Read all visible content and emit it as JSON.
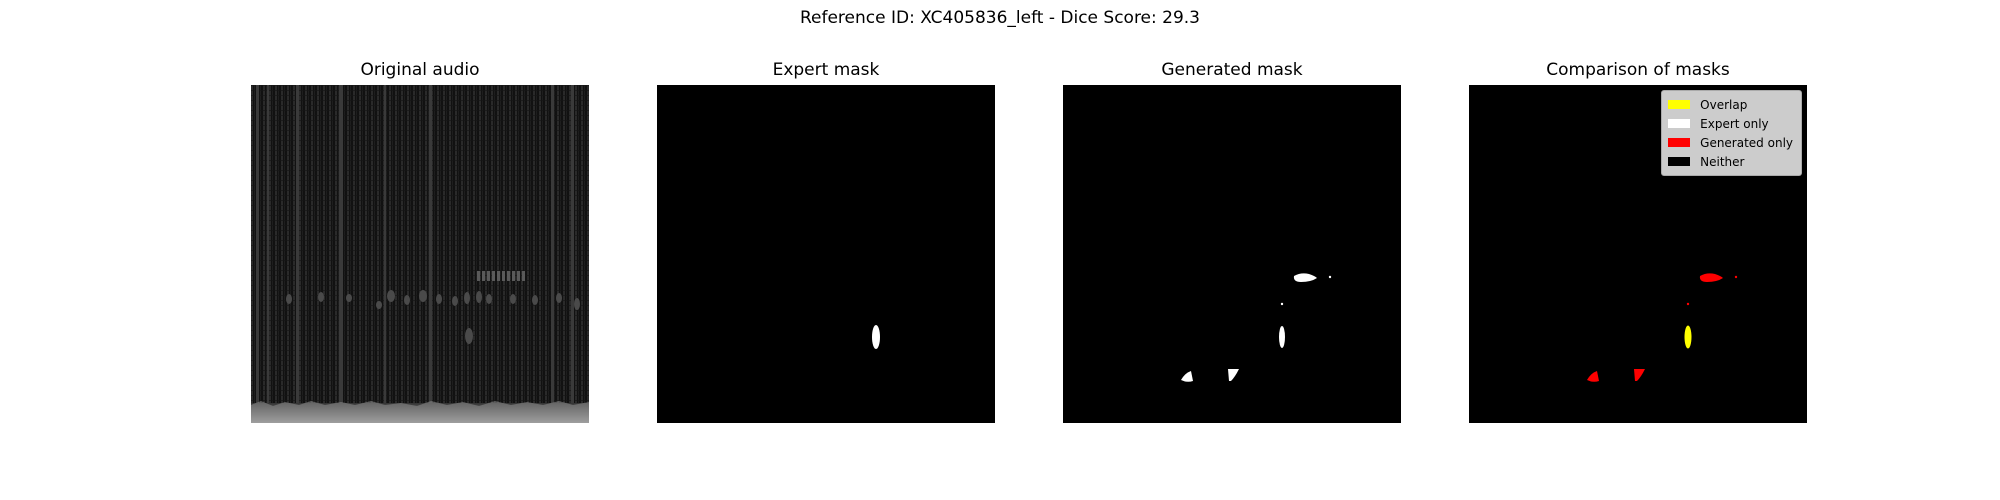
{
  "figure": {
    "title": "Reference ID: XC405836_left - Dice Score: 29.3"
  },
  "panels": {
    "original": {
      "title": "Original audio"
    },
    "expert": {
      "title": "Expert mask"
    },
    "generated": {
      "title": "Generated mask"
    },
    "comparison": {
      "title": "Comparison of masks"
    }
  },
  "legend": {
    "overlap": {
      "label": "Overlap",
      "color": "#ffff00"
    },
    "expert_only": {
      "label": "Expert only",
      "color": "#ffffff"
    },
    "generated_only": {
      "label": "Generated only",
      "color": "#ff0000"
    },
    "neither": {
      "label": "Neither",
      "color": "#000000"
    }
  },
  "chart_data": {
    "type": "heatmap",
    "dice_score": 29.3,
    "legend_position": "top-right",
    "grid": false,
    "colors": {
      "overlap": "#ffff00",
      "expert_only": "#ffffff",
      "generated_only": "#ff0000",
      "neither": "#000000"
    }
  }
}
